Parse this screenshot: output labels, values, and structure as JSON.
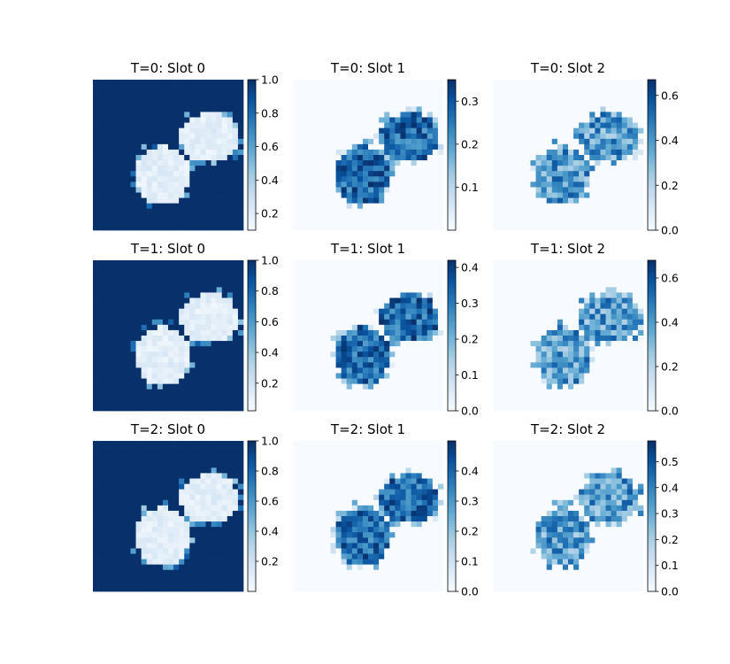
{
  "figure": {
    "background": "#ffffff",
    "colormap": "Blues",
    "grid_size": 28
  },
  "chart_data": [
    {
      "type": "heatmap",
      "title": "T=0: Slot 0",
      "role": "background",
      "clim": [
        0.1,
        1.0
      ],
      "colorbar_ticks": [
        0.2,
        0.4,
        0.6,
        0.8,
        1.0
      ]
    },
    {
      "type": "heatmap",
      "title": "T=0: Slot 1",
      "role": "object-a",
      "clim": [
        0.0,
        0.35
      ],
      "colorbar_ticks": [
        0.1,
        0.2,
        0.3
      ]
    },
    {
      "type": "heatmap",
      "title": "T=0: Slot 2",
      "role": "object-b",
      "clim": [
        0.0,
        0.67
      ],
      "colorbar_ticks": [
        0.0,
        0.2,
        0.4,
        0.6
      ]
    },
    {
      "type": "heatmap",
      "title": "T=1: Slot 0",
      "role": "background",
      "clim": [
        0.02,
        1.0
      ],
      "colorbar_ticks": [
        0.2,
        0.4,
        0.6,
        0.8,
        1.0
      ]
    },
    {
      "type": "heatmap",
      "title": "T=1: Slot 1",
      "role": "object-a",
      "clim": [
        0.0,
        0.42
      ],
      "colorbar_ticks": [
        0.0,
        0.1,
        0.2,
        0.3,
        0.4
      ]
    },
    {
      "type": "heatmap",
      "title": "T=1: Slot 2",
      "role": "object-b",
      "clim": [
        0.0,
        0.68
      ],
      "colorbar_ticks": [
        0.0,
        0.2,
        0.4,
        0.6
      ]
    },
    {
      "type": "heatmap",
      "title": "T=2: Slot 0",
      "role": "background",
      "clim": [
        0.0,
        1.0
      ],
      "colorbar_ticks": [
        0.2,
        0.4,
        0.6,
        0.8,
        1.0
      ]
    },
    {
      "type": "heatmap",
      "title": "T=2: Slot 1",
      "role": "object-a",
      "clim": [
        0.0,
        0.5
      ],
      "colorbar_ticks": [
        0.0,
        0.1,
        0.2,
        0.3,
        0.4
      ]
    },
    {
      "type": "heatmap",
      "title": "T=2: Slot 2",
      "role": "object-b",
      "clim": [
        0.0,
        0.58
      ],
      "colorbar_ticks": [
        0.0,
        0.1,
        0.2,
        0.3,
        0.4,
        0.5
      ]
    }
  ]
}
